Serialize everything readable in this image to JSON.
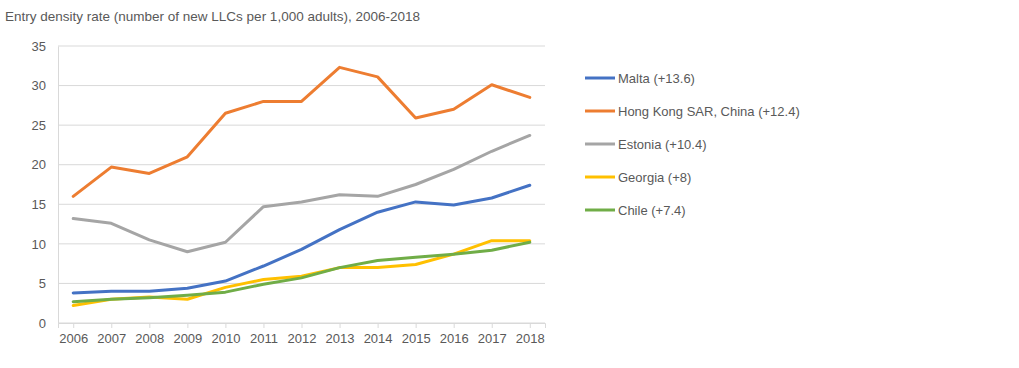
{
  "chart_data": {
    "type": "line",
    "title": "Entry density rate (number of new LLCs per 1,000 adults), 2006-2018",
    "x": [
      2006,
      2007,
      2008,
      2009,
      2010,
      2011,
      2012,
      2013,
      2014,
      2015,
      2016,
      2017,
      2018
    ],
    "xlim": [
      2005.6,
      2018.4
    ],
    "xticks": [
      2006,
      2007,
      2008,
      2009,
      2010,
      2011,
      2012,
      2013,
      2014,
      2015,
      2016,
      2017,
      2018
    ],
    "ylim": [
      0,
      35
    ],
    "yticks": [
      0,
      5,
      10,
      15,
      20,
      25,
      30,
      35
    ],
    "grid": true,
    "legend": "right",
    "series": [
      {
        "name": "Malta (+13.6)",
        "color": "#4472c4",
        "values": [
          3.8,
          4.0,
          4.0,
          4.4,
          5.3,
          7.2,
          9.3,
          11.8,
          14.0,
          15.3,
          14.9,
          15.8,
          17.4
        ]
      },
      {
        "name": "Hong Kong SAR, China (+12.4)",
        "color": "#ed7d31",
        "values": [
          16.0,
          19.7,
          18.9,
          21.0,
          26.5,
          28.0,
          28.0,
          32.3,
          31.1,
          25.9,
          27.0,
          30.1,
          28.5
        ]
      },
      {
        "name": "Estonia (+10.4)",
        "color": "#a5a5a5",
        "values": [
          13.2,
          12.6,
          10.5,
          9.0,
          10.2,
          14.7,
          15.3,
          16.2,
          16.0,
          17.5,
          19.4,
          21.7,
          23.7
        ]
      },
      {
        "name": "Georgia (+8)",
        "color": "#ffc000",
        "values": [
          2.2,
          3.0,
          3.3,
          3.0,
          4.5,
          5.5,
          5.9,
          7.0,
          7.0,
          7.4,
          8.7,
          10.4,
          10.4
        ]
      },
      {
        "name": "Chile (+7.4)",
        "color": "#70ad47",
        "values": [
          2.7,
          3.0,
          3.2,
          3.5,
          3.9,
          4.9,
          5.7,
          7.0,
          7.9,
          8.3,
          8.7,
          9.2,
          10.2
        ]
      }
    ]
  }
}
